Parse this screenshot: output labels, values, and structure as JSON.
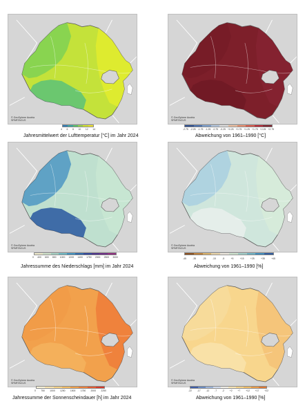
{
  "credit": {
    "line1": "© GeoSphere Austria",
    "line2": "SPARTACUS"
  },
  "panels": [
    {
      "caption": "Jahresmittelwert der Lufttemperatur [°C] im Jahr 2024",
      "fill_main": "#c4e23a",
      "fill_west": "#7fd155",
      "fill_south": "#5cc279",
      "fill_east": "#e3ec2e",
      "colorbar": [
        "#2c7bb6",
        "#39a7a0",
        "#5bc36c",
        "#9ad64a",
        "#d7e52c",
        "#f6e82a"
      ],
      "ticks": [
        "4",
        "6",
        "8",
        "10",
        "12",
        "14"
      ]
    },
    {
      "caption": "Abweichung von 1961–1990 [°C]",
      "fill_main": "#7d1f2a",
      "fill_west": "#751c27",
      "fill_south": "#6e1a24",
      "fill_east": "#852331",
      "colorbar": [
        "#2b4c8f",
        "#4a73b3",
        "#7ea3d2",
        "#b9cde6",
        "#e6e6e6",
        "#f5c6a6",
        "#ee9373",
        "#dd5a4b",
        "#b82634",
        "#7d1f2a"
      ],
      "ticks": [
        "-2.75",
        "-2.25",
        "-1.75",
        "-1.25",
        "-0.75",
        "-0.25",
        "+0.25",
        "+0.75",
        "+1.25",
        "+1.75",
        "+2.25",
        "+2.75"
      ]
    },
    {
      "caption": "Jahressumme des Niederschlags [mm] im Jahr 2024",
      "fill_main": "#bfe0cf",
      "fill_west": "#4d96c3",
      "fill_south": "#2857a0",
      "fill_east": "#c8e6d2",
      "colorbar": [
        "#f5f0d0",
        "#d6ead0",
        "#a9d8c9",
        "#6fbec9",
        "#3f94c4",
        "#2c68ae",
        "#2e419a",
        "#4a2f8a",
        "#6c2a86",
        "#8f2b7e"
      ],
      "ticks": [
        "0",
        "400",
        "600",
        "800",
        "1000",
        "1200",
        "1400",
        "1750",
        "2000",
        "2500",
        "3000"
      ]
    },
    {
      "caption": "Abweichung von 1961–1990 [%]",
      "fill_main": "#cfe6dc",
      "fill_west": "#a9cfe0",
      "fill_south": "#e9efec",
      "fill_east": "#d7ebd9",
      "colorbar": [
        "#8c4f1c",
        "#c2823a",
        "#e0b56a",
        "#f2dcae",
        "#f6f1e6",
        "#d6ecd6",
        "#a6d5cf",
        "#6fb7c9",
        "#3e8ec0",
        "#2c5aa0"
      ],
      "ticks": [
        "-45",
        "-35",
        "-25",
        "-15",
        "-5",
        "+5",
        "+15",
        "+25",
        "+35",
        "+45"
      ]
    },
    {
      "caption": "Jahressumme der  Sonnenscheindauer [h] im Jahr 2024",
      "fill_main": "#f2a14c",
      "fill_west": "#f19b48",
      "fill_south": "#f4b35e",
      "fill_east": "#ef7d3a",
      "colorbar": [
        "#fbf6dc",
        "#fbe7b3",
        "#f9d58a",
        "#f7bf65",
        "#f3a14b",
        "#ee823c",
        "#e55d32",
        "#d63a2b"
      ],
      "ticks": [
        "0",
        "750",
        "1000",
        "1250",
        "1500",
        "1750",
        "2000",
        "2250"
      ]
    },
    {
      "caption": "Abweichung von 1961–1990 [%]",
      "fill_main": "#f8d68d",
      "fill_west": "#f7dc9c",
      "fill_south": "#f9e3ab",
      "fill_east": "#f4c277",
      "colorbar": [
        "#3f5ea8",
        "#6a8cc4",
        "#9fb7dc",
        "#d5dff0",
        "#f4f2ea",
        "#fbe9b9",
        "#f8d68d",
        "#f3bf68",
        "#ec9d4a",
        "#e07a34"
      ],
      "ticks": [
        "-22",
        "-17",
        "-12",
        "-7",
        "-2",
        "+2",
        "+7",
        "+12",
        "+17",
        "+22"
      ]
    }
  ]
}
